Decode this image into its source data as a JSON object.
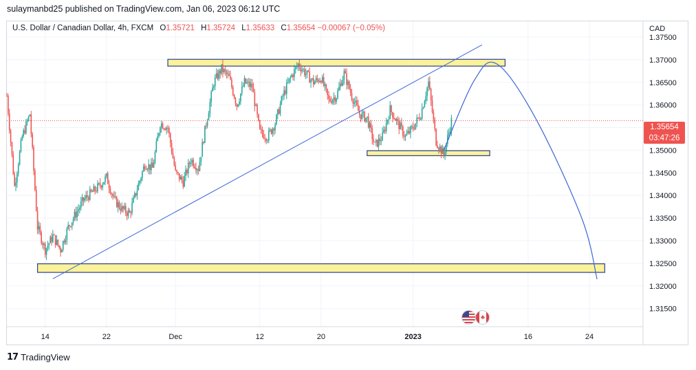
{
  "header": {
    "publisher_text": "sulaymanbd25 published on TradingView.com, Jan 06, 2023 06:12 UTC"
  },
  "legend": {
    "symbol": "U.S. Dollar / Canadian Dollar, 4h, FXCM",
    "open_label": "O",
    "open": "1.35721",
    "high_label": "H",
    "high": "1.35724",
    "low_label": "L",
    "low": "1.35633",
    "close_label": "C",
    "close": "1.35654",
    "change": "−0.00067 (−0.05%)"
  },
  "price_tag": {
    "price": "1.35654",
    "countdown": "03:47:26"
  },
  "footer": {
    "brand": "TradingView",
    "logo_glyph": "17"
  },
  "colors": {
    "bull": "#26a69a",
    "bear": "#ef5350",
    "zone_fill": "#fbf29a",
    "zone_border": "#2a3f8f",
    "trendline": "#3a66d6",
    "grid": "#f0f3fa",
    "last_price_line": "#ef5350"
  },
  "icons": {
    "flags": [
      "us-flag-icon",
      "canada-flag-icon"
    ],
    "logo": "tradingview-logo-icon"
  },
  "chart_data": {
    "type": "candlestick",
    "symbol": "USDCAD",
    "timeframe": "4h",
    "y_axis": {
      "currency_label": "CAD",
      "ticks": [
        "1.37500",
        "1.37000",
        "1.36500",
        "1.36000",
        "1.35500",
        "1.35000",
        "1.34500",
        "1.34000",
        "1.33500",
        "1.33000",
        "1.32500",
        "1.32000",
        "1.31500"
      ],
      "range": [
        1.311,
        1.3785
      ],
      "last_price": 1.35654
    },
    "x_axis": {
      "ticks": [
        "14",
        "22",
        "Dec",
        "12",
        "20",
        "2023",
        "16",
        "24"
      ],
      "start_date": "2022-11-09",
      "end_date": "2023-01-31"
    },
    "zones": [
      {
        "start": "2022-11-30",
        "end": "2023-01-13",
        "low": 1.3686,
        "high": 1.3701
      },
      {
        "start": "2022-12-26",
        "end": "2023-01-11",
        "low": 1.3488,
        "high": 1.3499
      },
      {
        "start": "2022-11-13",
        "end": "2023-01-26",
        "low": 1.323,
        "high": 1.3249
      }
    ],
    "trendline": {
      "from": {
        "date": "2022-11-15",
        "price": 1.3216
      },
      "to": {
        "date": "2023-01-10",
        "price": 1.3733
      }
    },
    "projection": [
      {
        "date": "2023-01-05",
        "price": 1.35
      },
      {
        "date": "2023-01-09",
        "price": 1.3655
      },
      {
        "date": "2023-01-12",
        "price": 1.369
      },
      {
        "date": "2023-01-17",
        "price": 1.357
      },
      {
        "date": "2023-01-23",
        "price": 1.335
      },
      {
        "date": "2023-01-25",
        "price": 1.3215
      }
    ],
    "price_path": [
      {
        "date": "2022-11-09",
        "price": 1.362
      },
      {
        "date": "2022-11-10",
        "price": 1.342
      },
      {
        "date": "2022-11-11",
        "price": 1.353
      },
      {
        "date": "2022-11-12",
        "price": 1.358
      },
      {
        "date": "2022-11-13",
        "price": 1.333
      },
      {
        "date": "2022-11-14",
        "price": 1.328
      },
      {
        "date": "2022-11-15",
        "price": 1.331
      },
      {
        "date": "2022-11-16",
        "price": 1.328
      },
      {
        "date": "2022-11-17",
        "price": 1.333
      },
      {
        "date": "2022-11-19",
        "price": 1.339
      },
      {
        "date": "2022-11-21",
        "price": 1.342
      },
      {
        "date": "2022-11-22",
        "price": 1.344
      },
      {
        "date": "2022-11-23",
        "price": 1.339
      },
      {
        "date": "2022-11-24",
        "price": 1.337
      },
      {
        "date": "2022-11-25",
        "price": 1.336
      },
      {
        "date": "2022-11-27",
        "price": 1.347
      },
      {
        "date": "2022-11-28",
        "price": 1.346
      },
      {
        "date": "2022-11-29",
        "price": 1.356
      },
      {
        "date": "2022-11-30",
        "price": 1.355
      },
      {
        "date": "2022-12-01",
        "price": 1.345
      },
      {
        "date": "2022-12-02",
        "price": 1.343
      },
      {
        "date": "2022-12-03",
        "price": 1.348
      },
      {
        "date": "2022-12-04",
        "price": 1.346
      },
      {
        "date": "2022-12-05",
        "price": 1.356
      },
      {
        "date": "2022-12-06",
        "price": 1.365
      },
      {
        "date": "2022-12-07",
        "price": 1.368
      },
      {
        "date": "2022-12-08",
        "price": 1.366
      },
      {
        "date": "2022-12-09",
        "price": 1.36
      },
      {
        "date": "2022-12-10",
        "price": 1.365
      },
      {
        "date": "2022-12-11",
        "price": 1.364
      },
      {
        "date": "2022-12-12",
        "price": 1.354
      },
      {
        "date": "2022-12-13",
        "price": 1.353
      },
      {
        "date": "2022-12-14",
        "price": 1.356
      },
      {
        "date": "2022-12-15",
        "price": 1.362
      },
      {
        "date": "2022-12-16",
        "price": 1.366
      },
      {
        "date": "2022-12-17",
        "price": 1.369
      },
      {
        "date": "2022-12-18",
        "price": 1.367
      },
      {
        "date": "2022-12-19",
        "price": 1.365
      },
      {
        "date": "2022-12-20",
        "price": 1.366
      },
      {
        "date": "2022-12-21",
        "price": 1.361
      },
      {
        "date": "2022-12-22",
        "price": 1.362
      },
      {
        "date": "2022-12-23",
        "price": 1.367
      },
      {
        "date": "2022-12-24",
        "price": 1.362
      },
      {
        "date": "2022-12-25",
        "price": 1.358
      },
      {
        "date": "2022-12-26",
        "price": 1.357
      },
      {
        "date": "2022-12-27",
        "price": 1.351
      },
      {
        "date": "2022-12-28",
        "price": 1.353
      },
      {
        "date": "2022-12-29",
        "price": 1.359
      },
      {
        "date": "2022-12-30",
        "price": 1.356
      },
      {
        "date": "2022-12-31",
        "price": 1.353
      },
      {
        "date": "2023-01-01",
        "price": 1.355
      },
      {
        "date": "2023-01-02",
        "price": 1.358
      },
      {
        "date": "2023-01-03",
        "price": 1.365
      },
      {
        "date": "2023-01-04",
        "price": 1.352
      },
      {
        "date": "2023-01-05",
        "price": 1.349
      },
      {
        "date": "2023-01-06",
        "price": 1.3565
      }
    ]
  }
}
